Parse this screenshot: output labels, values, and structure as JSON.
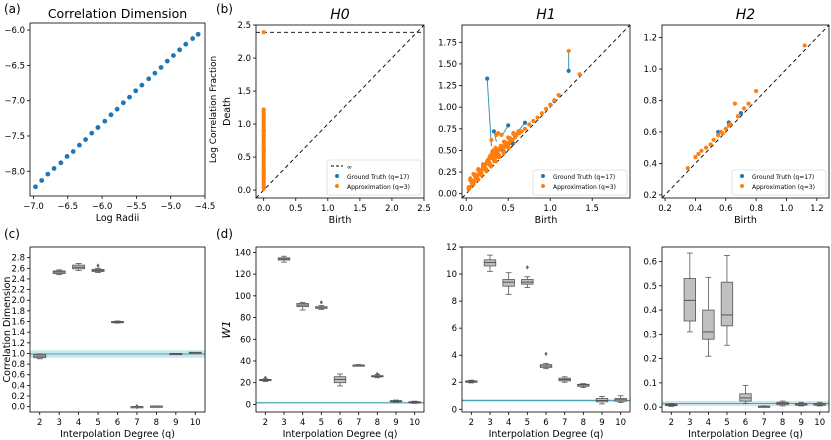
{
  "panel_labels": [
    "(a)",
    "(b)",
    "(c)",
    "(d)"
  ],
  "colors": {
    "ground_truth": "#1f77b4",
    "approximation": "#ff7f0e",
    "match_line": "#3a96b5",
    "band_line": "#4aa3b8",
    "band_fill": "#a9d4dd",
    "box_fill": "#c0c0c0",
    "box_edge": "#555555"
  },
  "chart_data": [
    {
      "id": "a",
      "type": "scatter",
      "title": "Correlation Dimension",
      "xlabel": "Log Radii",
      "ylabel": "Log Correlation Fraction",
      "xlim": [
        -7.05,
        -4.5
      ],
      "ylim": [
        -8.35,
        -5.9
      ],
      "xticks": [
        -7.0,
        -6.5,
        -6.0,
        -5.5,
        -5.0,
        -4.5
      ],
      "xtick_labels": [
        "−7.0",
        "−6.5",
        "−6.0",
        "−5.5",
        "−5.0",
        "−4.5"
      ],
      "yticks": [
        -8.0,
        -7.5,
        -7.0,
        -6.5,
        -6.0
      ],
      "ytick_labels": [
        "−8.0",
        "−7.5",
        "−7.0",
        "−6.5",
        "−6.0"
      ],
      "series": [
        {
          "color": "#1f77b4",
          "x": [
            -6.97,
            -6.88,
            -6.79,
            -6.7,
            -6.6,
            -6.51,
            -6.42,
            -6.33,
            -6.24,
            -6.15,
            -6.06,
            -5.96,
            -5.87,
            -5.78,
            -5.69,
            -5.6,
            -5.51,
            -5.42,
            -5.32,
            -5.23,
            -5.14,
            -5.05,
            -4.96,
            -4.87,
            -4.78,
            -4.68,
            -4.6
          ],
          "y": [
            -8.22,
            -8.13,
            -8.04,
            -7.96,
            -7.88,
            -7.79,
            -7.72,
            -7.63,
            -7.55,
            -7.46,
            -7.38,
            -7.29,
            -7.2,
            -7.12,
            -7.03,
            -6.95,
            -6.86,
            -6.78,
            -6.69,
            -6.61,
            -6.53,
            -6.44,
            -6.36,
            -6.28,
            -6.2,
            -6.12,
            -6.06
          ]
        }
      ]
    },
    {
      "id": "b_H0",
      "type": "scatter",
      "title": "H0",
      "xlabel": "Birth",
      "ylabel": "Death",
      "xlim": [
        -0.12,
        2.5
      ],
      "ylim": [
        -0.12,
        2.5
      ],
      "xticks": [
        0.0,
        0.5,
        1.0,
        1.5,
        2.0,
        2.5
      ],
      "xtick_labels": [
        "0.0",
        "0.5",
        "1.0",
        "1.5",
        "2.0",
        "2.5"
      ],
      "yticks": [
        0.0,
        0.5,
        1.0,
        1.5,
        2.0,
        2.5
      ],
      "ytick_labels": [
        "0.0",
        "0.5",
        "1.0",
        "1.5",
        "2.0",
        "2.5"
      ],
      "infinity_y": 2.39,
      "legend": [
        "∞",
        "Ground Truth (q=17)",
        "Approximation (q=3)"
      ],
      "legend_position": "lower-right",
      "approximation": {
        "x": [
          0,
          0,
          0,
          0,
          0,
          0,
          0,
          0,
          0,
          0,
          0,
          0,
          0,
          0,
          0,
          0,
          0,
          0,
          0,
          0,
          0,
          0,
          0,
          0,
          0,
          0,
          0,
          0,
          0,
          0,
          0,
          0,
          0,
          0,
          0,
          0,
          0,
          0,
          0,
          0,
          0,
          0
        ],
        "y": [
          0.02,
          0.05,
          0.08,
          0.11,
          0.14,
          0.17,
          0.2,
          0.23,
          0.26,
          0.29,
          0.32,
          0.35,
          0.38,
          0.41,
          0.44,
          0.47,
          0.5,
          0.53,
          0.56,
          0.59,
          0.62,
          0.65,
          0.68,
          0.71,
          0.74,
          0.77,
          0.8,
          0.83,
          0.86,
          0.89,
          0.92,
          0.95,
          0.98,
          1.01,
          1.04,
          1.07,
          1.1,
          1.13,
          1.16,
          1.19,
          1.22,
          2.39
        ]
      },
      "ground_truth": {
        "x": [
          0,
          0,
          0,
          0
        ],
        "y": [
          0.3,
          0.6,
          0.9,
          1.1
        ]
      }
    },
    {
      "id": "b_H1",
      "type": "scatter",
      "title": "H1",
      "xlabel": "Birth",
      "ylabel": "",
      "xlim": [
        -0.05,
        1.95
      ],
      "ylim": [
        -0.05,
        1.95
      ],
      "xticks": [
        0.0,
        0.5,
        1.0,
        1.5
      ],
      "xtick_labels": [
        "0.0",
        "0.5",
        "1.0",
        "1.5"
      ],
      "yticks": [
        0.0,
        0.25,
        0.5,
        0.75,
        1.0,
        1.25,
        1.5,
        1.75
      ],
      "ytick_labels": [
        "0.00",
        "0.25",
        "0.50",
        "0.75",
        "1.00",
        "1.25",
        "1.50",
        "1.75"
      ],
      "legend": [
        "Ground Truth (q=17)",
        "Approximation (q=3)"
      ],
      "legend_position": "lower-right",
      "ground_truth": {
        "x": [
          0.25,
          0.33,
          0.5,
          0.7,
          1.05,
          1.22,
          0.55,
          0.42
        ],
        "y": [
          1.33,
          0.72,
          0.79,
          0.82,
          1.07,
          1.42,
          0.58,
          0.52
        ]
      },
      "approximation": {
        "x": [
          0.05,
          0.08,
          0.1,
          0.12,
          0.15,
          0.17,
          0.19,
          0.2,
          0.22,
          0.24,
          0.25,
          0.27,
          0.28,
          0.3,
          0.31,
          0.32,
          0.34,
          0.35,
          0.36,
          0.38,
          0.4,
          0.42,
          0.44,
          0.46,
          0.48,
          0.5,
          0.52,
          0.55,
          0.58,
          0.6,
          0.63,
          0.66,
          0.7,
          0.75,
          0.8,
          0.85,
          0.9,
          0.95,
          1.0,
          1.05,
          1.1,
          0.36,
          0.38,
          0.3,
          0.45,
          0.5,
          0.42,
          0.62,
          1.22,
          1.35,
          0.35
        ],
        "y": [
          0.08,
          0.12,
          0.15,
          0.18,
          0.22,
          0.25,
          0.28,
          0.3,
          0.33,
          0.35,
          0.38,
          0.4,
          0.43,
          0.45,
          0.48,
          0.5,
          0.45,
          0.53,
          0.48,
          0.5,
          0.52,
          0.55,
          0.53,
          0.56,
          0.58,
          0.57,
          0.6,
          0.62,
          0.65,
          0.68,
          0.7,
          0.72,
          0.75,
          0.8,
          0.84,
          0.88,
          0.93,
          0.98,
          1.03,
          1.08,
          1.14,
          0.68,
          0.7,
          0.62,
          0.6,
          0.65,
          0.68,
          0.72,
          1.65,
          1.38,
          0.42
        ]
      },
      "matching_lines": [
        [
          0.25,
          1.33,
          0.3,
          0.55
        ],
        [
          0.33,
          0.72,
          0.36,
          0.6
        ],
        [
          0.5,
          0.79,
          0.42,
          0.66
        ],
        [
          0.7,
          0.82,
          0.6,
          0.7
        ],
        [
          1.22,
          1.42,
          1.22,
          1.65
        ]
      ]
    },
    {
      "id": "b_H2",
      "type": "scatter",
      "title": "H2",
      "xlabel": "Birth",
      "ylabel": "",
      "xlim": [
        0.18,
        1.28
      ],
      "ylim": [
        0.18,
        1.28
      ],
      "xticks": [
        0.2,
        0.4,
        0.6,
        0.8,
        1.0,
        1.2
      ],
      "xtick_labels": [
        "0.2",
        "0.4",
        "0.6",
        "0.8",
        "1.0",
        "1.2"
      ],
      "yticks": [
        0.2,
        0.4,
        0.6,
        0.8,
        1.0,
        1.2
      ],
      "ytick_labels": [
        "0.2",
        "0.4",
        "0.6",
        "0.8",
        "1.0",
        "1.2"
      ],
      "legend": [
        "Ground Truth (q=17)",
        "Approximation (q=3)"
      ],
      "legend_position": "lower-right",
      "ground_truth": {
        "x": [
          0.55,
          0.62,
          0.7
        ],
        "y": [
          0.6,
          0.66,
          0.72
        ]
      },
      "approximation": {
        "x": [
          0.35,
          0.4,
          0.42,
          0.44,
          0.47,
          0.5,
          0.52,
          0.55,
          0.57,
          0.58,
          0.6,
          0.62,
          0.63,
          0.66,
          0.68,
          0.72,
          0.75,
          0.8,
          1.12
        ],
        "y": [
          0.37,
          0.44,
          0.46,
          0.48,
          0.5,
          0.52,
          0.55,
          0.58,
          0.6,
          0.59,
          0.62,
          0.64,
          0.65,
          0.78,
          0.7,
          0.75,
          0.78,
          0.86,
          1.15
        ]
      }
    },
    {
      "id": "c",
      "type": "box",
      "xlabel": "Interpolation Degree (q)",
      "ylabel": "Correlation Dimension",
      "categories": [
        "2",
        "3",
        "4",
        "5",
        "6",
        "7",
        "8",
        "9",
        "10"
      ],
      "ylim": [
        -0.1,
        3.0
      ],
      "yticks": [
        0.0,
        0.2,
        0.4,
        0.6,
        0.8,
        1.0,
        1.2,
        1.4,
        1.6,
        1.8,
        2.0,
        2.2,
        2.4,
        2.6,
        2.8
      ],
      "ytick_labels": [
        "0.0",
        "0.2",
        "0.4",
        "0.6",
        "0.8",
        "1.0",
        "1.2",
        "1.4",
        "1.6",
        "1.8",
        "2.0",
        "2.2",
        "2.4",
        "2.6",
        "2.8"
      ],
      "reference": {
        "value": 0.99,
        "band": [
          0.92,
          1.06
        ]
      },
      "boxes": [
        {
          "min": 0.9,
          "q1": 0.92,
          "median": 0.95,
          "q3": 0.98,
          "max": 0.99,
          "outliers": []
        },
        {
          "min": 2.48,
          "q1": 2.5,
          "median": 2.53,
          "q3": 2.55,
          "max": 2.57,
          "outliers": []
        },
        {
          "min": 2.56,
          "q1": 2.59,
          "median": 2.62,
          "q3": 2.66,
          "max": 2.69,
          "outliers": []
        },
        {
          "min": 2.52,
          "q1": 2.54,
          "median": 2.56,
          "q3": 2.58,
          "max": 2.6,
          "outliers": [
            2.65
          ]
        },
        {
          "min": 1.57,
          "q1": 1.58,
          "median": 1.59,
          "q3": 1.6,
          "max": 1.61,
          "outliers": []
        },
        {
          "min": 0.0,
          "q1": 0.0,
          "median": 0.0,
          "q3": 0.0,
          "max": 0.0,
          "outliers": [
            -0.01,
            0.01
          ]
        },
        {
          "min": 0.01,
          "q1": 0.01,
          "median": 0.01,
          "q3": 0.01,
          "max": 0.01,
          "outliers": []
        },
        {
          "min": 0.98,
          "q1": 0.99,
          "median": 0.99,
          "q3": 1.0,
          "max": 1.0,
          "outliers": []
        },
        {
          "min": 1.01,
          "q1": 1.01,
          "median": 1.02,
          "q3": 1.02,
          "max": 1.02,
          "outliers": []
        }
      ]
    },
    {
      "id": "d_W1",
      "type": "box",
      "xlabel": "Interpolation Degree (q)",
      "ylabel": "W1",
      "categories": [
        "2",
        "3",
        "4",
        "5",
        "6",
        "7",
        "8",
        "9",
        "10"
      ],
      "ylim": [
        -7,
        145
      ],
      "yticks": [
        0,
        20,
        40,
        60,
        80,
        100,
        120,
        140
      ],
      "ytick_labels": [
        "0",
        "20",
        "40",
        "60",
        "80",
        "100",
        "120",
        "140"
      ],
      "reference": {
        "value": 1.5,
        "band": [
          0.5,
          2.5
        ]
      },
      "boxes": [
        {
          "min": 21,
          "q1": 22,
          "median": 22.5,
          "q3": 23,
          "max": 23.5,
          "outliers": [
            24.5
          ]
        },
        {
          "min": 131,
          "q1": 133,
          "median": 134,
          "q3": 135,
          "max": 136.5,
          "outliers": []
        },
        {
          "min": 87,
          "q1": 90,
          "median": 91.5,
          "q3": 93,
          "max": 94,
          "outliers": []
        },
        {
          "min": 87.5,
          "q1": 88.5,
          "median": 89,
          "q3": 90,
          "max": 91,
          "outliers": [
            94
          ]
        },
        {
          "min": 17,
          "q1": 20,
          "median": 23,
          "q3": 25.5,
          "max": 28,
          "outliers": []
        },
        {
          "min": 35.5,
          "q1": 35.8,
          "median": 36,
          "q3": 36.3,
          "max": 36.7,
          "outliers": []
        },
        {
          "min": 24.5,
          "q1": 25.5,
          "median": 26,
          "q3": 26.5,
          "max": 27.5,
          "outliers": [
            28
          ]
        },
        {
          "min": 2,
          "q1": 2.5,
          "median": 3,
          "q3": 3.5,
          "max": 4,
          "outliers": []
        },
        {
          "min": 1,
          "q1": 1.5,
          "median": 2,
          "q3": 2.5,
          "max": 3,
          "outliers": []
        }
      ]
    },
    {
      "id": "d_W1_H1",
      "type": "box",
      "xlabel": "Interpolation Degree (q)",
      "ylabel": "",
      "categories": [
        "2",
        "3",
        "4",
        "5",
        "6",
        "7",
        "8",
        "9",
        "10"
      ],
      "ylim": [
        -0.2,
        12
      ],
      "yticks": [
        0,
        2,
        4,
        6,
        8,
        10,
        12
      ],
      "ytick_labels": [
        "0",
        "2",
        "4",
        "6",
        "8",
        "10",
        "12"
      ],
      "reference": {
        "value": 0.65,
        "band": [
          0.55,
          0.75
        ]
      },
      "boxes": [
        {
          "min": 1.95,
          "q1": 2.0,
          "median": 2.05,
          "q3": 2.1,
          "max": 2.15,
          "outliers": []
        },
        {
          "min": 10.2,
          "q1": 10.6,
          "median": 10.85,
          "q3": 11.05,
          "max": 11.4,
          "outliers": []
        },
        {
          "min": 8.5,
          "q1": 9.1,
          "median": 9.4,
          "q3": 9.6,
          "max": 10.1,
          "outliers": []
        },
        {
          "min": 9.0,
          "q1": 9.25,
          "median": 9.4,
          "q3": 9.6,
          "max": 9.8,
          "outliers": [
            10.5
          ]
        },
        {
          "min": 3.0,
          "q1": 3.1,
          "median": 3.2,
          "q3": 3.3,
          "max": 3.4,
          "outliers": [
            4.1
          ]
        },
        {
          "min": 2.0,
          "q1": 2.1,
          "median": 2.2,
          "q3": 2.3,
          "max": 2.4,
          "outliers": []
        },
        {
          "min": 1.6,
          "q1": 1.7,
          "median": 1.8,
          "q3": 1.85,
          "max": 1.9,
          "outliers": []
        },
        {
          "min": 0.4,
          "q1": 0.55,
          "median": 0.65,
          "q3": 0.8,
          "max": 0.95,
          "outliers": []
        },
        {
          "min": 0.5,
          "q1": 0.6,
          "median": 0.7,
          "q3": 0.8,
          "max": 1.0,
          "outliers": []
        }
      ]
    },
    {
      "id": "d_W1_H2",
      "type": "box",
      "xlabel": "Interpolation Degree (q)",
      "ylabel": "",
      "categories": [
        "2",
        "3",
        "4",
        "5",
        "6",
        "7",
        "8",
        "9",
        "10"
      ],
      "ylim": [
        -0.02,
        0.66
      ],
      "yticks": [
        0.0,
        0.1,
        0.2,
        0.3,
        0.4,
        0.5,
        0.6
      ],
      "ytick_labels": [
        "0.0",
        "0.1",
        "0.2",
        "0.3",
        "0.4",
        "0.5",
        "0.6"
      ],
      "reference": {
        "value": 0.015,
        "band": [
          0.005,
          0.025
        ]
      },
      "boxes": [
        {
          "min": 0.003,
          "q1": 0.006,
          "median": 0.009,
          "q3": 0.012,
          "max": 0.015,
          "outliers": []
        },
        {
          "min": 0.31,
          "q1": 0.355,
          "median": 0.44,
          "q3": 0.53,
          "max": 0.635,
          "outliers": []
        },
        {
          "min": 0.21,
          "q1": 0.28,
          "median": 0.31,
          "q3": 0.4,
          "max": 0.535,
          "outliers": []
        },
        {
          "min": 0.255,
          "q1": 0.335,
          "median": 0.38,
          "q3": 0.515,
          "max": 0.625,
          "outliers": []
        },
        {
          "min": 0.015,
          "q1": 0.025,
          "median": 0.038,
          "q3": 0.055,
          "max": 0.09,
          "outliers": []
        },
        {
          "min": 0.001,
          "q1": 0.002,
          "median": 0.003,
          "q3": 0.004,
          "max": 0.005,
          "outliers": []
        },
        {
          "min": 0.005,
          "q1": 0.01,
          "median": 0.015,
          "q3": 0.02,
          "max": 0.025,
          "outliers": []
        },
        {
          "min": 0.005,
          "q1": 0.008,
          "median": 0.012,
          "q3": 0.015,
          "max": 0.02,
          "outliers": []
        },
        {
          "min": 0.005,
          "q1": 0.008,
          "median": 0.012,
          "q3": 0.015,
          "max": 0.02,
          "outliers": []
        }
      ]
    }
  ]
}
